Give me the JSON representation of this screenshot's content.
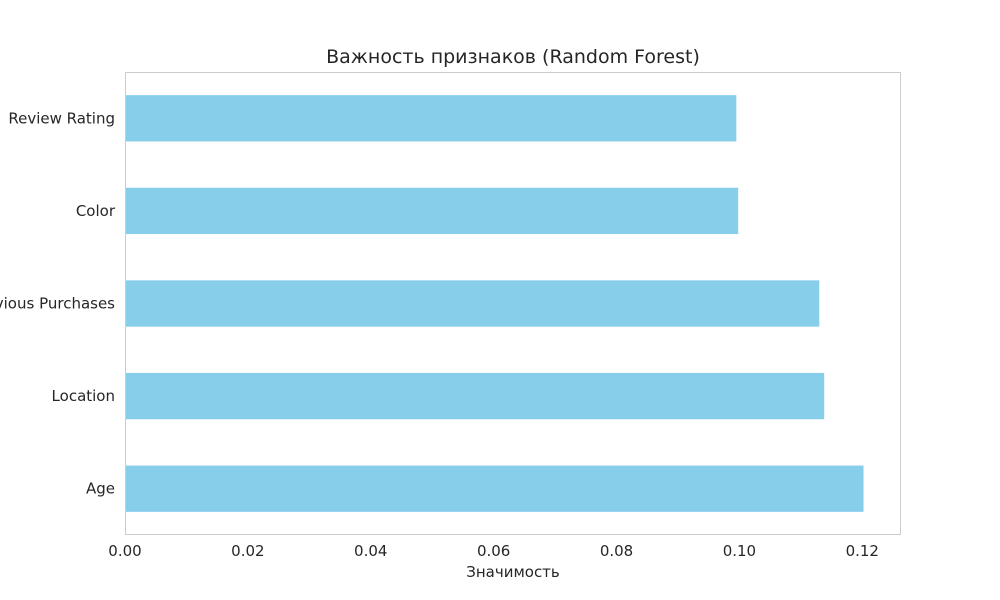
{
  "chart_data": {
    "type": "bar",
    "orientation": "horizontal",
    "title": "Важность признаков (Random Forest)",
    "xlabel": "Значимость",
    "ylabel": "",
    "categories": [
      "Review Rating",
      "Color",
      "Previous Purchases",
      "Location",
      "Age"
    ],
    "values": [
      0.0995,
      0.0998,
      0.113,
      0.1138,
      0.1202
    ],
    "xlim": [
      0,
      0.1263
    ],
    "xticks": [
      "0.00",
      "0.02",
      "0.04",
      "0.06",
      "0.08",
      "0.10",
      "0.12"
    ],
    "xtick_values": [
      0,
      0.02,
      0.04,
      0.06,
      0.08,
      0.1,
      0.12
    ],
    "bar_color": "#87ceeb",
    "frame_color": "#cccccc",
    "grid": false,
    "legend": "none"
  }
}
